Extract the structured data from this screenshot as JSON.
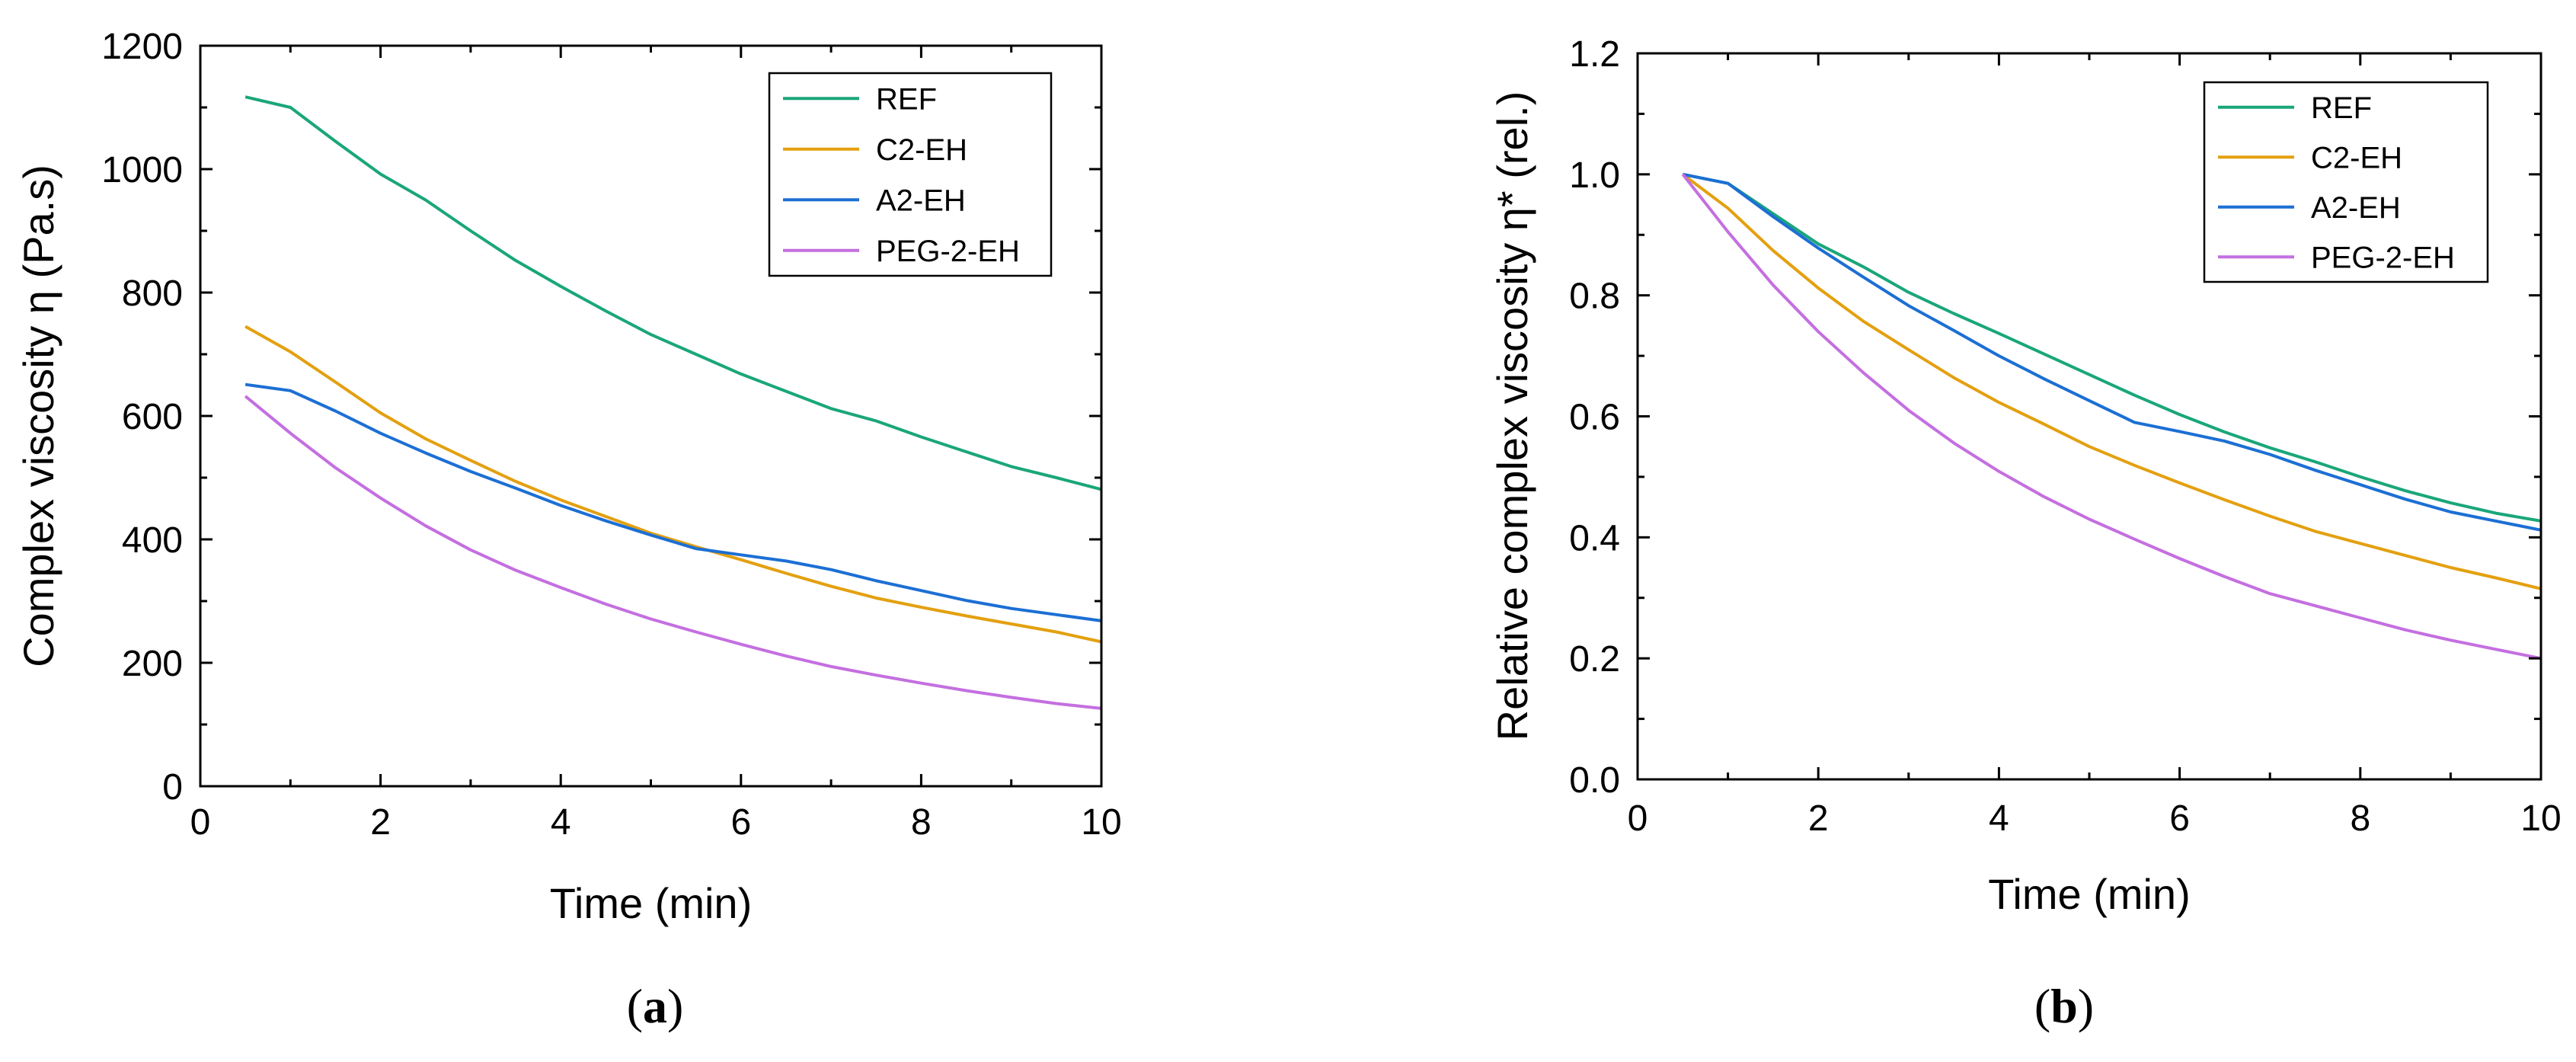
{
  "chart_data": [
    {
      "type": "line",
      "panel": "a",
      "caption": {
        "open": "(",
        "letter": "a",
        "close": ")"
      },
      "xlabel": "Time (min)",
      "ylabel": "Complex viscosity η (Pa.s)",
      "xlim": [
        0,
        10
      ],
      "ylim": [
        0,
        1200
      ],
      "xticks": [
        0,
        2,
        4,
        6,
        8,
        10
      ],
      "yticks": [
        0,
        200,
        400,
        600,
        800,
        1000,
        1200
      ],
      "tick_decimals": 0,
      "grid": false,
      "legend_position": "top-right",
      "series": [
        {
          "name": "REF",
          "color": "#1aa67a",
          "points": [
            [
              0.5,
              1117
            ],
            [
              1,
              1100
            ],
            [
              1.5,
              1045
            ],
            [
              2,
              992
            ],
            [
              2.5,
              950
            ],
            [
              3,
              900
            ],
            [
              3.5,
              852
            ],
            [
              4,
              810
            ],
            [
              4.5,
              770
            ],
            [
              5,
              732
            ],
            [
              5.5,
              700
            ],
            [
              6,
              668
            ],
            [
              6.5,
              640
            ],
            [
              7,
              612
            ],
            [
              7.5,
              592
            ],
            [
              8,
              566
            ],
            [
              8.5,
              542
            ],
            [
              9,
              518
            ],
            [
              9.5,
              500
            ],
            [
              10,
              481
            ]
          ]
        },
        {
          "name": "C2-EH",
          "color": "#e3a010",
          "points": [
            [
              0.5,
              745
            ],
            [
              1,
              704
            ],
            [
              1.5,
              655
            ],
            [
              2,
              605
            ],
            [
              2.5,
              563
            ],
            [
              3,
              528
            ],
            [
              3.5,
              494
            ],
            [
              4,
              464
            ],
            [
              4.5,
              437
            ],
            [
              5,
              410
            ],
            [
              5.5,
              388
            ],
            [
              6,
              367
            ],
            [
              6.5,
              345
            ],
            [
              7,
              324
            ],
            [
              7.5,
              305
            ],
            [
              8,
              290
            ],
            [
              8.5,
              276
            ],
            [
              9,
              263
            ],
            [
              9.5,
              250
            ],
            [
              10,
              234
            ]
          ]
        },
        {
          "name": "A2-EH",
          "color": "#1c6fd4",
          "points": [
            [
              0.5,
              651
            ],
            [
              1,
              641
            ],
            [
              1.5,
              608
            ],
            [
              2,
              572
            ],
            [
              2.5,
              540
            ],
            [
              3,
              510
            ],
            [
              3.5,
              483
            ],
            [
              4,
              455
            ],
            [
              4.5,
              430
            ],
            [
              5,
              407
            ],
            [
              5.5,
              385
            ],
            [
              6,
              375
            ],
            [
              6.5,
              365
            ],
            [
              7,
              351
            ],
            [
              7.5,
              333
            ],
            [
              8,
              317
            ],
            [
              8.5,
              301
            ],
            [
              9,
              288
            ],
            [
              9.5,
              278
            ],
            [
              10,
              268
            ]
          ]
        },
        {
          "name": "PEG-2-EH",
          "color": "#c46fe0",
          "points": [
            [
              0.5,
              632
            ],
            [
              1,
              572
            ],
            [
              1.5,
              516
            ],
            [
              2,
              467
            ],
            [
              2.5,
              422
            ],
            [
              3,
              383
            ],
            [
              3.5,
              350
            ],
            [
              4,
              322
            ],
            [
              4.5,
              295
            ],
            [
              5,
              271
            ],
            [
              5.5,
              250
            ],
            [
              6,
              230
            ],
            [
              6.5,
              211
            ],
            [
              7,
              194
            ],
            [
              7.5,
              180
            ],
            [
              8,
              167
            ],
            [
              8.5,
              155
            ],
            [
              9,
              144
            ],
            [
              9.5,
              134
            ],
            [
              10,
              126
            ]
          ]
        }
      ]
    },
    {
      "type": "line",
      "panel": "b",
      "caption": {
        "open": "(",
        "letter": "b",
        "close": ")"
      },
      "xlabel": "Time (min)",
      "ylabel": "Relative complex viscosity η* (rel.)",
      "xlim": [
        0,
        10
      ],
      "ylim": [
        0,
        1.2
      ],
      "xticks": [
        0,
        2,
        4,
        6,
        8,
        10
      ],
      "yticks": [
        0,
        0.2,
        0.4,
        0.6,
        0.8,
        1.0,
        1.2
      ],
      "tick_decimals": 1,
      "grid": false,
      "legend_position": "top-right",
      "series": [
        {
          "name": "REF",
          "color": "#1aa67a",
          "points": [
            [
              0.5,
              1.0
            ],
            [
              1,
              0.985
            ],
            [
              1.5,
              0.935
            ],
            [
              2,
              0.885
            ],
            [
              2.5,
              0.847
            ],
            [
              3,
              0.805
            ],
            [
              3.5,
              0.77
            ],
            [
              4,
              0.737
            ],
            [
              4.5,
              0.703
            ],
            [
              5,
              0.669
            ],
            [
              5.5,
              0.635
            ],
            [
              6,
              0.603
            ],
            [
              6.5,
              0.574
            ],
            [
              7,
              0.548
            ],
            [
              7.5,
              0.525
            ],
            [
              8,
              0.5
            ],
            [
              8.5,
              0.477
            ],
            [
              9,
              0.457
            ],
            [
              9.5,
              0.44
            ],
            [
              10,
              0.427
            ]
          ]
        },
        {
          "name": "C2-EH",
          "color": "#e3a010",
          "points": [
            [
              0.5,
              1.0
            ],
            [
              1,
              0.944
            ],
            [
              1.5,
              0.874
            ],
            [
              2,
              0.812
            ],
            [
              2.5,
              0.757
            ],
            [
              3,
              0.71
            ],
            [
              3.5,
              0.664
            ],
            [
              4,
              0.623
            ],
            [
              4.5,
              0.587
            ],
            [
              5,
              0.55
            ],
            [
              5.5,
              0.519
            ],
            [
              6,
              0.49
            ],
            [
              6.5,
              0.462
            ],
            [
              7,
              0.435
            ],
            [
              7.5,
              0.41
            ],
            [
              8,
              0.39
            ],
            [
              8.5,
              0.37
            ],
            [
              9,
              0.35
            ],
            [
              9.5,
              0.333
            ],
            [
              10,
              0.315
            ]
          ]
        },
        {
          "name": "A2-EH",
          "color": "#1c6fd4",
          "points": [
            [
              0.5,
              1.0
            ],
            [
              1,
              0.985
            ],
            [
              1.5,
              0.93
            ],
            [
              2,
              0.878
            ],
            [
              2.5,
              0.83
            ],
            [
              3,
              0.783
            ],
            [
              3.5,
              0.742
            ],
            [
              4,
              0.7
            ],
            [
              4.5,
              0.662
            ],
            [
              5,
              0.626
            ],
            [
              5.5,
              0.59
            ],
            [
              6,
              0.575
            ],
            [
              6.5,
              0.559
            ],
            [
              7,
              0.537
            ],
            [
              7.5,
              0.511
            ],
            [
              8,
              0.487
            ],
            [
              8.5,
              0.463
            ],
            [
              9,
              0.442
            ],
            [
              9.5,
              0.427
            ],
            [
              10,
              0.412
            ]
          ]
        },
        {
          "name": "PEG-2-EH",
          "color": "#c46fe0",
          "points": [
            [
              0.5,
              1.0
            ],
            [
              1,
              0.905
            ],
            [
              1.5,
              0.817
            ],
            [
              2,
              0.74
            ],
            [
              2.5,
              0.672
            ],
            [
              3,
              0.61
            ],
            [
              3.5,
              0.556
            ],
            [
              4,
              0.509
            ],
            [
              4.5,
              0.467
            ],
            [
              5,
              0.43
            ],
            [
              5.5,
              0.397
            ],
            [
              6,
              0.365
            ],
            [
              6.5,
              0.335
            ],
            [
              7,
              0.307
            ],
            [
              7.5,
              0.287
            ],
            [
              8,
              0.267
            ],
            [
              8.5,
              0.247
            ],
            [
              9,
              0.23
            ],
            [
              9.5,
              0.215
            ],
            [
              10,
              0.2
            ]
          ]
        }
      ]
    }
  ]
}
